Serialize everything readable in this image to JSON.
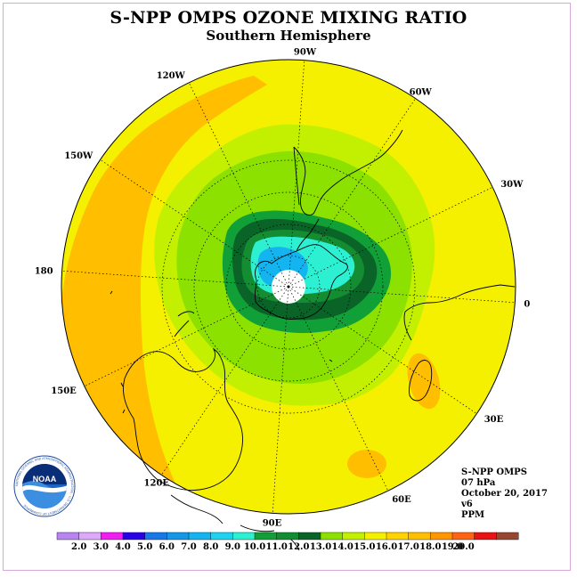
{
  "title": "S-NPP OMPS OZONE MIXING RATIO",
  "subtitle": "Southern Hemisphere",
  "longitude_labels": [
    "90W",
    "60W",
    "30W",
    "0",
    "30E",
    "60E",
    "90E",
    "120E",
    "150E",
    "180",
    "150W",
    "120W"
  ],
  "info": {
    "instrument": "S-NPP OMPS",
    "pressure": "07 hPa",
    "date": "October 20, 2017",
    "version": "v6",
    "units": "PPM"
  },
  "logo": {
    "name": "NOAA",
    "ring_text": "NATIONAL OCEANIC AND ATMOSPHERIC ADMINISTRATION · U.S. DEPARTMENT OF COMMERCE"
  },
  "colorbar": {
    "labels": [
      "2.0",
      "3.0",
      "4.0",
      "5.0",
      "6.0",
      "7.0",
      "8.0",
      "9.0",
      "10.0",
      "11.0",
      "12.0",
      "13.0",
      "14.0",
      "15.0",
      "16.0",
      "17.0",
      "18.0",
      "19.0",
      "20.0"
    ],
    "colors": [
      "#b784f0",
      "#dcaaf8",
      "#f01ef0",
      "#2a00e6",
      "#1778e6",
      "#1497e6",
      "#14b4f0",
      "#1ed2f0",
      "#2df0d2",
      "#11a037",
      "#148c32",
      "#0a6428",
      "#8ce100",
      "#c3f000",
      "#f5f000",
      "#ffd200",
      "#ffbe00",
      "#ff9600",
      "#ff6414",
      "#e61414",
      "#964632"
    ]
  },
  "colors": {
    "background_field": "#f5f000",
    "orange_band": "#ffbe00",
    "pole_cap": "#ffffff",
    "frame": "#d8a8d8"
  }
}
